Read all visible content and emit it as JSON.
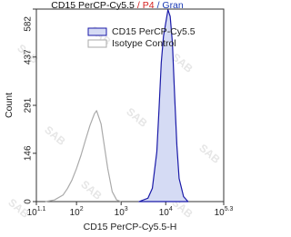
{
  "chart_data": {
    "type": "histogram-line",
    "title_segments": [
      {
        "text": "CD15 PerCP-Cy5.5",
        "color": "#111111"
      },
      {
        "text": "/ P4",
        "color": "#d42020"
      },
      {
        "text": "/ Gran",
        "color": "#1a3bb5"
      }
    ],
    "x_label": "CD15 PerCP-Cy5.5-H",
    "y_label": "Count",
    "watermark": "SAB",
    "xscale": "log",
    "xlim": [
      12.589,
      199526
    ],
    "xticks": [
      {
        "value": 12.589,
        "label": "10",
        "exponent": "1.1"
      },
      {
        "value": 100,
        "label": "10",
        "exponent": "2"
      },
      {
        "value": 1000,
        "label": "10",
        "exponent": "3"
      },
      {
        "value": 10000,
        "label": "10",
        "exponent": "4"
      },
      {
        "value": 199526,
        "label": "10",
        "exponent": "5.3"
      }
    ],
    "ylim": [
      0,
      582
    ],
    "yticks": [
      0,
      146,
      291,
      437,
      582
    ],
    "legend": "top-center",
    "series": [
      {
        "name": "CD15 PerCP-Cy5.5",
        "color": "#1a1aa8",
        "fill": "#d5dbf4",
        "x": [
          2512,
          3981,
          5012,
          6310,
          7079,
          7943,
          8913,
          10000,
          11220,
          12589,
          14125,
          15849,
          17783,
          19953,
          25119,
          31623
        ],
        "values": [
          0,
          10,
          40,
          150,
          280,
          420,
          500,
          540,
          580,
          560,
          480,
          320,
          170,
          70,
          15,
          0
        ]
      },
      {
        "name": "Isotype Control",
        "color": "#aaaaaa",
        "fill": "none",
        "x": [
          20,
          32,
          50,
          63,
          79,
          100,
          126,
          158,
          200,
          251,
          282,
          316,
          355,
          398,
          501,
          631,
          794,
          1000
        ],
        "values": [
          0,
          5,
          20,
          40,
          65,
          100,
          140,
          185,
          230,
          265,
          275,
          255,
          235,
          190,
          100,
          30,
          5,
          0
        ]
      }
    ]
  }
}
